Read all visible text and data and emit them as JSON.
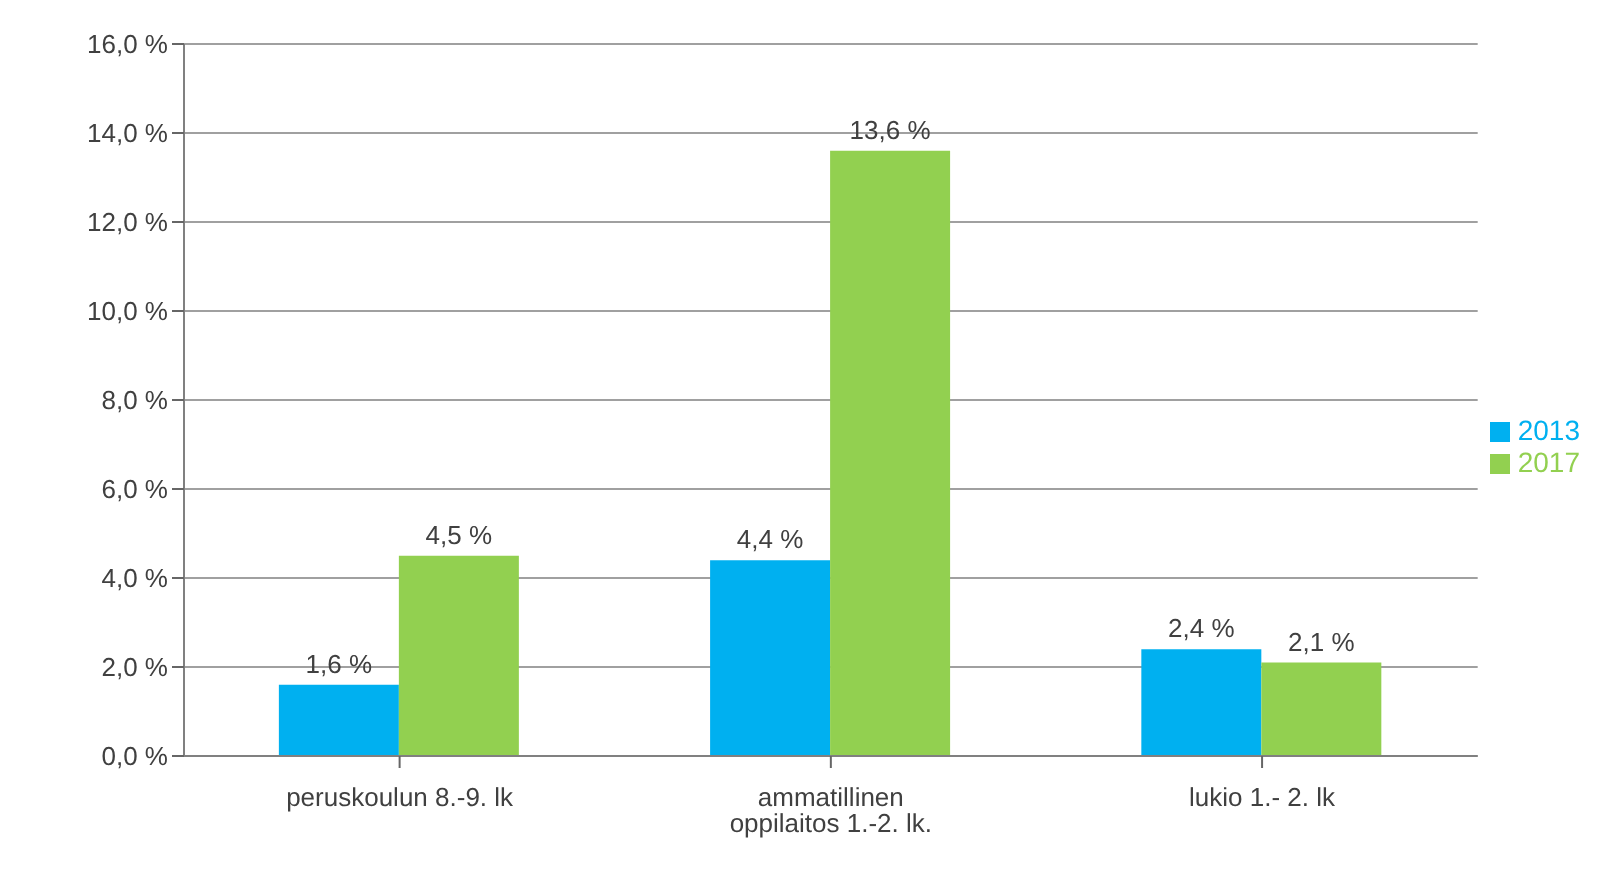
{
  "chart_data": {
    "type": "bar",
    "categories": [
      "peruskoulun 8.-9. lk",
      "ammatillinen oppilaitos 1.-2. lk.",
      "lukio 1.- 2. lk"
    ],
    "series": [
      {
        "name": "2013",
        "color": "#00b0f0",
        "values": [
          1.6,
          4.4,
          2.4
        ],
        "value_labels": [
          "1,6 %",
          "4,4 %",
          "2,4 %"
        ]
      },
      {
        "name": "2017",
        "color": "#92d050",
        "values": [
          4.5,
          13.6,
          2.1
        ],
        "value_labels": [
          "4,5 %",
          "13,6 %",
          "2,1 %"
        ]
      }
    ],
    "ylim": [
      0,
      16
    ],
    "yticks": [
      {
        "value": 0,
        "label": "0,0 %"
      },
      {
        "value": 2,
        "label": "2,0 %"
      },
      {
        "value": 4,
        "label": "4,0 %"
      },
      {
        "value": 6,
        "label": "6,0 %"
      },
      {
        "value": 8,
        "label": "8,0 %"
      },
      {
        "value": 10,
        "label": "10,0 %"
      },
      {
        "value": 12,
        "label": "12,0 %"
      },
      {
        "value": 14,
        "label": "14,0 %"
      },
      {
        "value": 16,
        "label": "16,0 %"
      }
    ],
    "grid": "y",
    "legend": "right"
  }
}
